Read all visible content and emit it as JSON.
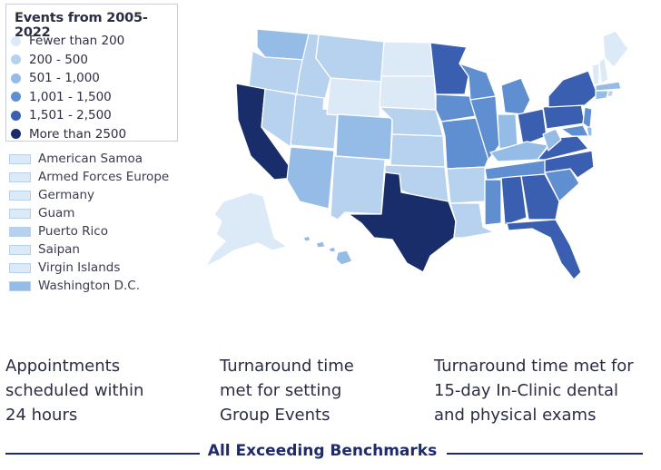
{
  "legend": {
    "title": "Events from 2005-2022",
    "items": [
      {
        "label": "Fewer than 200",
        "color": "#dce9f7"
      },
      {
        "label": "200 - 500",
        "color": "#b7d2ef"
      },
      {
        "label": "501 - 1,000",
        "color": "#94bce6"
      },
      {
        "label": "1,001 - 1,500",
        "color": "#5f8fd0"
      },
      {
        "label": "1,501 - 2,500",
        "color": "#3a5fb0"
      },
      {
        "label": "More than 2500",
        "color": "#1a2d6b"
      }
    ]
  },
  "territories": [
    {
      "label": "American Samoa",
      "color": "#dce9f7"
    },
    {
      "label": "Armed Forces Europe",
      "color": "#dce9f7"
    },
    {
      "label": "Germany",
      "color": "#dce9f7"
    },
    {
      "label": "Guam",
      "color": "#dce9f7"
    },
    {
      "label": "Puerto Rico",
      "color": "#b7d2ef"
    },
    {
      "label": "Saipan",
      "color": "#dce9f7"
    },
    {
      "label": "Virgin Islands",
      "color": "#dce9f7"
    },
    {
      "label": "Washington D.C.",
      "color": "#94bce6"
    }
  ],
  "stats": [
    {
      "text": "Appointments\nscheduled within\n24 hours"
    },
    {
      "text": "Turnaround time\nmet for setting\nGroup Events"
    },
    {
      "text": "Turnaround time met for\n15-day In-Clinic dental\nand physical exams"
    }
  ],
  "footer": {
    "text": "All Exceeding Benchmarks",
    "color": "#1e2a6e"
  }
}
